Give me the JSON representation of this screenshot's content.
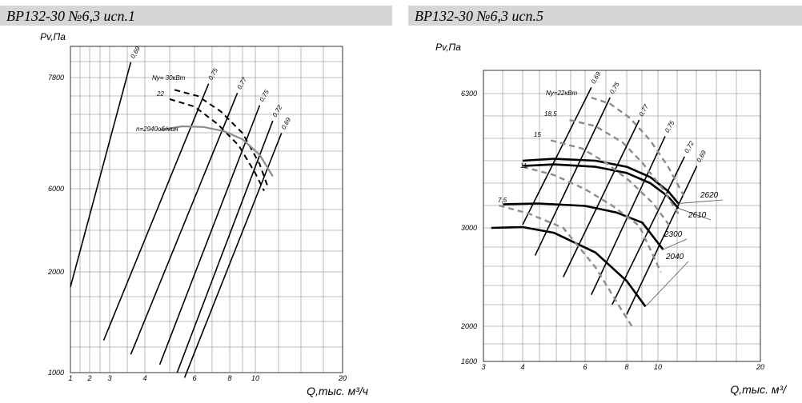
{
  "panels": {
    "left": {
      "title": "ВР132-30 №6,3 исп.1"
    },
    "right": {
      "title": "ВР132-30 №6,3 исп.5"
    }
  },
  "chart_data": [
    {
      "type": "line",
      "title": "ВР132-30 №6,3 исп.1",
      "ylabel": "Pv,Па",
      "xlabel": "Q,тыс. м³/ч",
      "x_ticks": [
        1,
        2,
        3,
        4,
        6,
        8,
        10,
        20
      ],
      "y_ticks": [
        1000,
        2000,
        6000,
        7800
      ],
      "grid": true,
      "annotations": [
        "Nу= 30кВт",
        "22",
        "n=2940об/мин"
      ],
      "efficiency_lines": [
        {
          "label": "0,69",
          "points": [
            [
              1.0,
              1850
            ],
            [
              3.6,
              8050
            ]
          ]
        },
        {
          "label": "0,75",
          "points": [
            [
              2.7,
              1320
            ],
            [
              6.8,
              7700
            ]
          ]
        },
        {
          "label": "0,77",
          "points": [
            [
              3.6,
              1180
            ],
            [
              8.6,
              7550
            ]
          ]
        },
        {
          "label": "0,75",
          "points": [
            [
              4.6,
              1080
            ],
            [
              10.5,
              7350
            ]
          ]
        },
        {
          "label": "0,72",
          "points": [
            [
              5.3,
              1000
            ],
            [
              12.0,
              7100
            ]
          ]
        },
        {
          "label": "0,69",
          "points": [
            [
              5.6,
              950
            ],
            [
              13.0,
              6900
            ]
          ]
        }
      ],
      "series": [
        {
          "name": "30",
          "style": "dashed",
          "x": [
            5.2,
            6.2,
            7.5,
            9.0,
            10.5,
            11.5
          ],
          "y": [
            7600,
            7500,
            7250,
            6900,
            6400,
            6000
          ]
        },
        {
          "name": "22",
          "style": "dashed",
          "x": [
            5.0,
            6.0,
            7.3,
            8.7,
            10.0,
            11.0
          ],
          "y": [
            7450,
            7330,
            7050,
            6700,
            6250,
            5900
          ]
        },
        {
          "name": "2940",
          "style": "solid-gray",
          "x": [
            4.6,
            5.5,
            6.5,
            7.7,
            9.0,
            10.5,
            12.0
          ],
          "y": [
            6950,
            7010,
            7000,
            6930,
            6800,
            6550,
            6200
          ]
        }
      ]
    },
    {
      "type": "line",
      "title": "ВР132-30 №6,3 исп.5",
      "ylabel": "Pv,Па",
      "xlabel": "Q,тыс. м³/",
      "x_ticks": [
        3,
        4,
        6,
        8,
        10,
        20
      ],
      "y_ticks": [
        1600,
        2000,
        3000,
        6300
      ],
      "grid": true,
      "annotations": [
        "Nу=22кВт",
        "18,5",
        "15",
        "11",
        "7,5"
      ],
      "efficiency_lines": [
        {
          "label": "0,69",
          "points": [
            [
              4.0,
              3080
            ],
            [
              6.3,
              6450
            ]
          ]
        },
        {
          "label": "0,75",
          "points": [
            [
              4.4,
              2720
            ],
            [
              7.2,
              6200
            ]
          ]
        },
        {
          "label": "0,77",
          "points": [
            [
              5.3,
              2500
            ],
            [
              8.8,
              5650
            ]
          ]
        },
        {
          "label": "0,75",
          "points": [
            [
              6.3,
              2320
            ],
            [
              10.7,
              5250
            ]
          ]
        },
        {
          "label": "0,72",
          "points": [
            [
              7.3,
              2220
            ],
            [
              12.6,
              4750
            ]
          ]
        },
        {
          "label": "0,69",
          "points": [
            [
              8.0,
              2120
            ],
            [
              13.8,
              4520
            ]
          ]
        }
      ],
      "series": [
        {
          "name": "2620",
          "style": "solid",
          "x": [
            4.0,
            5.0,
            6.5,
            8.0,
            9.5,
            11.0,
            12.0
          ],
          "y": [
            4650,
            4700,
            4650,
            4500,
            4250,
            3900,
            3600
          ]
        },
        {
          "name": "2610",
          "style": "solid",
          "x": [
            4.0,
            5.0,
            6.5,
            8.0,
            9.5,
            11.0,
            12.0
          ],
          "y": [
            4520,
            4560,
            4500,
            4350,
            4100,
            3770,
            3480
          ]
        },
        {
          "name": "2300",
          "style": "solid",
          "x": [
            3.5,
            4.5,
            6.0,
            7.5,
            9.0,
            10.5
          ],
          "y": [
            3580,
            3600,
            3540,
            3380,
            3130,
            2780
          ]
        },
        {
          "name": "2040",
          "style": "solid",
          "x": [
            3.2,
            4.0,
            5.0,
            6.5,
            8.0,
            9.2
          ],
          "y": [
            3000,
            3020,
            2950,
            2750,
            2460,
            2200
          ]
        },
        {
          "name": "22",
          "style": "dashed",
          "x": [
            6.3,
            7.2,
            8.2,
            9.5,
            11.0,
            12.5
          ],
          "y": [
            6200,
            6050,
            5700,
            5150,
            4500,
            3800
          ]
        },
        {
          "name": "18,5",
          "style": "dashed",
          "x": [
            5.5,
            6.5,
            7.8,
            9.0,
            10.5,
            12.0
          ],
          "y": [
            5650,
            5500,
            5100,
            4600,
            3950,
            3350
          ]
        },
        {
          "name": "15",
          "style": "dashed",
          "x": [
            4.9,
            5.9,
            7.0,
            8.2,
            9.7,
            11.3
          ],
          "y": [
            5150,
            4950,
            4600,
            4150,
            3600,
            3000
          ]
        },
        {
          "name": "11",
          "style": "dashed",
          "x": [
            4.0,
            5.0,
            6.0,
            7.3,
            8.8,
            10.3
          ],
          "y": [
            4500,
            4300,
            3950,
            3550,
            3050,
            2550
          ]
        },
        {
          "name": "7,5",
          "style": "dashed",
          "x": [
            3.4,
            4.2,
            5.3,
            6.5,
            7.8,
            8.4
          ],
          "y": [
            3550,
            3350,
            3000,
            2600,
            2150,
            1980
          ]
        }
      ]
    }
  ]
}
